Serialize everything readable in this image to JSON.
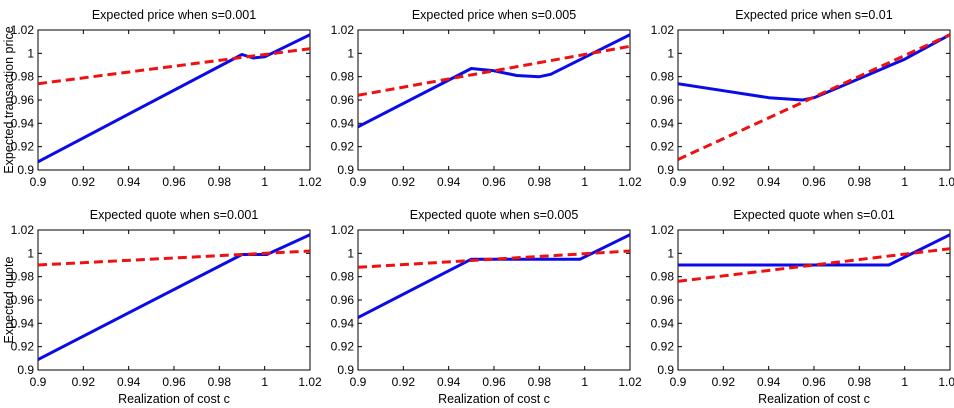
{
  "chart_data": [
    {
      "type": "line",
      "title": "Expected price when s=0.001",
      "xlabel": "",
      "ylabel": "Expected transaction price",
      "xlim": [
        0.9,
        1.02
      ],
      "ylim": [
        0.9,
        1.02
      ],
      "xticks": [
        "0.9",
        "0.92",
        "0.94",
        "0.96",
        "0.98",
        "1",
        "1.02"
      ],
      "yticks": [
        "0.9",
        "0.92",
        "0.94",
        "0.96",
        "0.98",
        "1",
        "1.02"
      ],
      "grid": false,
      "series": [
        {
          "style": "solid",
          "color": "#0b0bea",
          "x": [
            0.9,
            0.99,
            0.995,
            1.0,
            1.02
          ],
          "y": [
            0.907,
            0.999,
            0.996,
            0.997,
            1.016
          ]
        },
        {
          "style": "dashed",
          "color": "#ee1111",
          "x": [
            0.9,
            1.02
          ],
          "y": [
            0.974,
            1.004
          ]
        }
      ]
    },
    {
      "type": "line",
      "title": "Expected price when s=0.005",
      "xlabel": "",
      "ylabel": "",
      "xlim": [
        0.9,
        1.02
      ],
      "ylim": [
        0.9,
        1.02
      ],
      "xticks": [
        "0.9",
        "0.92",
        "0.94",
        "0.96",
        "0.98",
        "1",
        "1.02"
      ],
      "yticks": [
        "0.9",
        "0.92",
        "0.94",
        "0.96",
        "0.98",
        "1",
        "1.02"
      ],
      "grid": false,
      "series": [
        {
          "style": "solid",
          "color": "#0b0bea",
          "x": [
            0.9,
            0.95,
            0.96,
            0.97,
            0.98,
            0.985,
            1.02
          ],
          "y": [
            0.937,
            0.987,
            0.985,
            0.981,
            0.98,
            0.982,
            1.016
          ]
        },
        {
          "style": "dashed",
          "color": "#ee1111",
          "x": [
            0.9,
            1.02
          ],
          "y": [
            0.964,
            1.006
          ]
        }
      ]
    },
    {
      "type": "line",
      "title": "Expected price when s=0.01",
      "xlabel": "",
      "ylabel": "",
      "xlim": [
        0.9,
        1.02
      ],
      "ylim": [
        0.9,
        1.02
      ],
      "xticks": [
        "0.9",
        "0.92",
        "0.94",
        "0.96",
        "0.98",
        "1",
        "1.02"
      ],
      "yticks": [
        "0.9",
        "0.92",
        "0.94",
        "0.96",
        "0.98",
        "1",
        "1.02"
      ],
      "grid": false,
      "series": [
        {
          "style": "solid",
          "color": "#0b0bea",
          "x": [
            0.9,
            0.92,
            0.94,
            0.955,
            0.96,
            0.97,
            1.0,
            1.02
          ],
          "y": [
            0.974,
            0.968,
            0.962,
            0.96,
            0.962,
            0.97,
            0.995,
            1.016
          ]
        },
        {
          "style": "dashed",
          "color": "#ee1111",
          "x": [
            0.9,
            1.02
          ],
          "y": [
            0.909,
            1.016
          ]
        }
      ]
    },
    {
      "type": "line",
      "title": "Expected quote when s=0.001",
      "xlabel": "Realization of cost c",
      "ylabel": "Expected quote",
      "xlim": [
        0.9,
        1.02
      ],
      "ylim": [
        0.9,
        1.02
      ],
      "xticks": [
        "0.9",
        "0.92",
        "0.94",
        "0.96",
        "0.98",
        "1",
        "1.02"
      ],
      "yticks": [
        "0.9",
        "0.92",
        "0.94",
        "0.96",
        "0.98",
        "1",
        "1.02"
      ],
      "grid": false,
      "series": [
        {
          "style": "solid",
          "color": "#0b0bea",
          "x": [
            0.9,
            0.99,
            1.001,
            1.02
          ],
          "y": [
            0.909,
            0.999,
            0.999,
            1.016
          ]
        },
        {
          "style": "dashed",
          "color": "#ee1111",
          "x": [
            0.9,
            1.02
          ],
          "y": [
            0.99,
            1.002
          ]
        }
      ]
    },
    {
      "type": "line",
      "title": "Expected quote when s=0.005",
      "xlabel": "Realization of cost c",
      "ylabel": "",
      "xlim": [
        0.9,
        1.02
      ],
      "ylim": [
        0.9,
        1.02
      ],
      "xticks": [
        "0.9",
        "0.92",
        "0.94",
        "0.96",
        "0.98",
        "1",
        "1.02"
      ],
      "yticks": [
        "0.9",
        "0.92",
        "0.94",
        "0.96",
        "0.98",
        "1",
        "1.02"
      ],
      "grid": false,
      "series": [
        {
          "style": "solid",
          "color": "#0b0bea",
          "x": [
            0.9,
            0.95,
            0.998,
            1.02
          ],
          "y": [
            0.945,
            0.995,
            0.995,
            1.016
          ]
        },
        {
          "style": "dashed",
          "color": "#ee1111",
          "x": [
            0.9,
            1.02
          ],
          "y": [
            0.988,
            1.002
          ]
        }
      ]
    },
    {
      "type": "line",
      "title": "Expected quote when s=0.01",
      "xlabel": "Realization of cost c",
      "ylabel": "",
      "xlim": [
        0.9,
        1.02
      ],
      "ylim": [
        0.9,
        1.02
      ],
      "xticks": [
        "0.9",
        "0.92",
        "0.94",
        "0.96",
        "0.98",
        "1",
        "1.02"
      ],
      "yticks": [
        "0.9",
        "0.92",
        "0.94",
        "0.96",
        "0.98",
        "1",
        "1.02"
      ],
      "grid": false,
      "series": [
        {
          "style": "solid",
          "color": "#0b0bea",
          "x": [
            0.9,
            0.993,
            1.02
          ],
          "y": [
            0.99,
            0.99,
            1.016
          ]
        },
        {
          "style": "dashed",
          "color": "#ee1111",
          "x": [
            0.9,
            1.02
          ],
          "y": [
            0.976,
            1.004
          ]
        }
      ]
    }
  ]
}
